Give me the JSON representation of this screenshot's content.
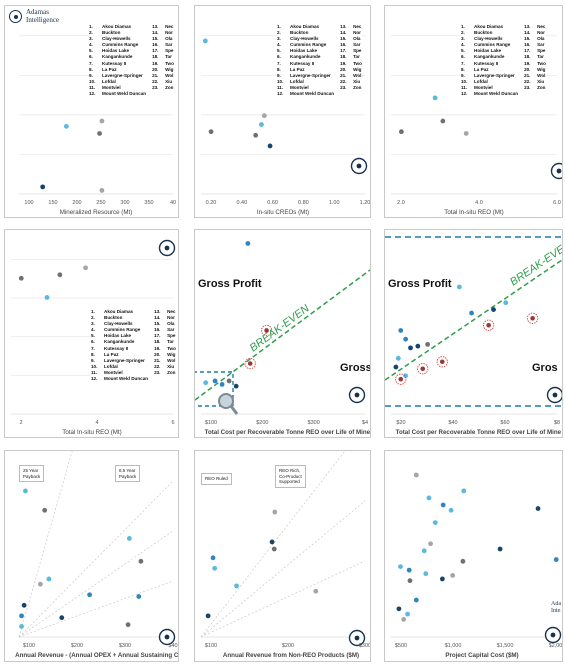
{
  "legend": {
    "col1": [
      {
        "n": "1.",
        "name": "Akou Diamas"
      },
      {
        "n": "2.",
        "name": "Buckton"
      },
      {
        "n": "3.",
        "name": "Clay-Howells"
      },
      {
        "n": "4.",
        "name": "Cummins Range"
      },
      {
        "n": "5.",
        "name": "Hoidas Lake"
      },
      {
        "n": "6.",
        "name": "Kangankunde"
      },
      {
        "n": "7.",
        "name": "Kutessay II"
      },
      {
        "n": "8.",
        "name": "La Paz"
      },
      {
        "n": "9.",
        "name": "Lavergne-Springer"
      },
      {
        "n": "10.",
        "name": "Lofdal"
      },
      {
        "n": "11.",
        "name": "Montviel"
      },
      {
        "n": "12.",
        "name": "Mount Weld Duncan"
      }
    ],
    "col2": [
      {
        "n": "13.",
        "name": "Nec"
      },
      {
        "n": "14.",
        "name": "Nor"
      },
      {
        "n": "15.",
        "name": "Ola"
      },
      {
        "n": "16.",
        "name": "Sar"
      },
      {
        "n": "17.",
        "name": "Spe"
      },
      {
        "n": "18.",
        "name": "Tar"
      },
      {
        "n": "19.",
        "name": "Two"
      },
      {
        "n": "20.",
        "name": "Wig"
      },
      {
        "n": "21.",
        "name": "Wol"
      },
      {
        "n": "22.",
        "name": "Xiu"
      },
      {
        "n": "23.",
        "name": "Zon"
      }
    ]
  },
  "logo": {
    "line1": "Adamas",
    "line2": "Intelligence"
  },
  "colors": {
    "light": "#5bb8de",
    "mid": "#2f86bd",
    "dark": "#16456e",
    "grey": "#707070",
    "lightgrey": "#a5a5a5",
    "green": "#2e9e4b",
    "red": "#d64545",
    "frame": "#c9c9c9"
  },
  "notes": {
    "p7_a": [
      "25 Year",
      "Payback"
    ],
    "p7_b": [
      "8.5 Year",
      "Payback"
    ],
    "p8_a": [
      "REO Ruled"
    ],
    "p8_b": [
      "REO Rich,",
      "Co-Product",
      "Supported"
    ]
  },
  "chart_data": [
    {
      "type": "scatter",
      "xlabel": "Mineralized Resource (Mt)",
      "xticks": [
        "100",
        "150",
        "200",
        "250",
        "300",
        "350",
        "40"
      ],
      "xlim": [
        75,
        400
      ],
      "ylim": [
        0,
        10
      ],
      "grid": true,
      "points": [
        {
          "x": 125,
          "y": 0.4,
          "c": "dark"
        },
        {
          "x": 175,
          "y": 3.8,
          "c": "light"
        },
        {
          "x": 245,
          "y": 3.4,
          "c": "grey"
        },
        {
          "x": 250,
          "y": 4.1,
          "c": "lightgrey"
        },
        {
          "x": 250,
          "y": 0.2,
          "c": "lightgrey"
        }
      ]
    },
    {
      "type": "scatter",
      "xlabel": "In-situ CREOs (Mt)",
      "xticks": [
        "0.20",
        "0.40",
        "0.60",
        "0.80",
        "1.00",
        "1.20"
      ],
      "xlim": [
        0.18,
        1.32
      ],
      "ylim": [
        0,
        10
      ],
      "grid": true,
      "points": [
        {
          "x": 0.21,
          "y": 8.6,
          "c": "light"
        },
        {
          "x": 0.25,
          "y": 3.5,
          "c": "grey"
        },
        {
          "x": 0.56,
          "y": 3.3,
          "c": "grey"
        },
        {
          "x": 0.6,
          "y": 3.9,
          "c": "light"
        },
        {
          "x": 0.62,
          "y": 4.4,
          "c": "lightgrey"
        },
        {
          "x": 0.66,
          "y": 2.7,
          "c": "dark"
        }
      ]
    },
    {
      "type": "scatter",
      "xlabel": "Total In-situ REO (Mt)",
      "xticks": [
        "2.0",
        "4.0",
        "6.0"
      ],
      "xlim": [
        0.6,
        7.0
      ],
      "ylim": [
        0,
        10
      ],
      "grid": true,
      "points": [
        {
          "x": 1.0,
          "y": 3.5,
          "c": "grey"
        },
        {
          "x": 2.3,
          "y": 5.4,
          "c": "light"
        },
        {
          "x": 2.6,
          "y": 4.1,
          "c": "grey"
        },
        {
          "x": 3.5,
          "y": 3.4,
          "c": "lightgrey"
        }
      ]
    },
    {
      "type": "scatter",
      "xlabel": "Total In-situ REO (Mt)",
      "xticks": [
        "2",
        "4",
        "6"
      ],
      "xlim": [
        0.5,
        6.8
      ],
      "ylim": [
        0,
        10
      ],
      "grid": true,
      "points": [
        {
          "x": 0.9,
          "y": 7.8,
          "c": "grey"
        },
        {
          "x": 2.4,
          "y": 8.0,
          "c": "grey"
        },
        {
          "x": 3.4,
          "y": 8.4,
          "c": "lightgrey"
        },
        {
          "x": 1.9,
          "y": 6.7,
          "c": "light"
        }
      ]
    },
    {
      "type": "scatter",
      "xlabel": "Total Cost per Recoverable Tonne REO over Life of Mine ($",
      "xticks": [
        "$100",
        "$200",
        "$300",
        "$4"
      ],
      "xlim": [
        50,
        400
      ],
      "ylim": [
        0,
        10
      ],
      "grid": false,
      "texts": {
        "upper": "Gross Profit",
        "lower": "Gross l",
        "line": "BREAK-EVEN"
      },
      "points": [
        {
          "x": 150,
          "y": 9.8,
          "c": "mid"
        },
        {
          "x": 190,
          "y": 4.8,
          "c": "red"
        },
        {
          "x": 155,
          "y": 2.9,
          "c": "red"
        },
        {
          "x": 60,
          "y": 1.8,
          "c": "light"
        },
        {
          "x": 80,
          "y": 1.9,
          "c": "mid"
        },
        {
          "x": 95,
          "y": 1.7,
          "c": "mid"
        },
        {
          "x": 110,
          "y": 1.9,
          "c": "grey"
        },
        {
          "x": 125,
          "y": 1.6,
          "c": "dark"
        }
      ]
    },
    {
      "type": "scatter",
      "xlabel": "Total Cost per Recoverable Tonne REO over Life of Mine ($",
      "xticks": [
        "$20",
        "$40",
        "$60",
        "$8"
      ],
      "xlim": [
        12,
        80
      ],
      "ylim": [
        0,
        10
      ],
      "grid": false,
      "texts": {
        "upper": "Gross Profit",
        "lower": "Gros",
        "line": "BREAK-EVEN"
      },
      "points": [
        {
          "x": 40,
          "y": 7.3,
          "c": "light"
        },
        {
          "x": 45,
          "y": 5.8,
          "c": "mid"
        },
        {
          "x": 54,
          "y": 6.0,
          "c": "dark"
        },
        {
          "x": 59,
          "y": 6.4,
          "c": "light"
        },
        {
          "x": 16,
          "y": 4.8,
          "c": "mid"
        },
        {
          "x": 18,
          "y": 4.3,
          "c": "mid"
        },
        {
          "x": 20,
          "y": 3.8,
          "c": "dark"
        },
        {
          "x": 23,
          "y": 3.9,
          "c": "dark"
        },
        {
          "x": 27,
          "y": 4.0,
          "c": "grey"
        },
        {
          "x": 15,
          "y": 3.2,
          "c": "light"
        },
        {
          "x": 14,
          "y": 2.7,
          "c": "dark"
        },
        {
          "x": 18,
          "y": 2.2,
          "c": "light"
        },
        {
          "x": 33,
          "y": 3.0,
          "c": "red"
        },
        {
          "x": 25,
          "y": 2.6,
          "c": "red"
        },
        {
          "x": 16,
          "y": 2.0,
          "c": "red"
        },
        {
          "x": 52,
          "y": 5.1,
          "c": "red"
        },
        {
          "x": 70,
          "y": 5.5,
          "c": "red"
        }
      ]
    },
    {
      "type": "scatter",
      "xlabel": "Annual Revenue - (Annual OPEX + Annual Sustaining Capita",
      "xticks": [
        "$100",
        "$200",
        "$300",
        "$40"
      ],
      "xlim": [
        50,
        410
      ],
      "ylim": [
        0,
        10
      ],
      "grid": false,
      "points": [
        {
          "x": 65,
          "y": 8.3,
          "c": "light"
        },
        {
          "x": 110,
          "y": 7.2,
          "c": "grey"
        },
        {
          "x": 308,
          "y": 5.6,
          "c": "light"
        },
        {
          "x": 335,
          "y": 4.3,
          "c": "grey"
        },
        {
          "x": 120,
          "y": 3.3,
          "c": "light"
        },
        {
          "x": 100,
          "y": 3.0,
          "c": "lightgrey"
        },
        {
          "x": 215,
          "y": 2.4,
          "c": "mid"
        },
        {
          "x": 330,
          "y": 2.3,
          "c": "mid"
        },
        {
          "x": 62,
          "y": 1.8,
          "c": "dark"
        },
        {
          "x": 56,
          "y": 1.2,
          "c": "mid"
        },
        {
          "x": 150,
          "y": 1.1,
          "c": "dark"
        },
        {
          "x": 305,
          "y": 0.7,
          "c": "grey"
        },
        {
          "x": 56,
          "y": 0.6,
          "c": "light"
        }
      ]
    },
    {
      "type": "scatter",
      "xlabel": "Annual Revenue from Non-REO Products ($M)",
      "xticks": [
        "$100",
        "$200",
        "$300"
      ],
      "xlim": [
        30,
        330
      ],
      "ylim": [
        0,
        10
      ],
      "grid": false,
      "points": [
        {
          "x": 165,
          "y": 7.1,
          "c": "lightgrey"
        },
        {
          "x": 160,
          "y": 5.4,
          "c": "dark"
        },
        {
          "x": 164,
          "y": 5.0,
          "c": "grey"
        },
        {
          "x": 52,
          "y": 4.5,
          "c": "mid"
        },
        {
          "x": 55,
          "y": 3.9,
          "c": "light"
        },
        {
          "x": 95,
          "y": 2.9,
          "c": "light"
        },
        {
          "x": 240,
          "y": 2.6,
          "c": "lightgrey"
        },
        {
          "x": 43,
          "y": 1.2,
          "c": "dark"
        }
      ]
    },
    {
      "type": "scatter",
      "xlabel": "Project Capital Cost ($M)",
      "xticks": [
        "$500",
        "$1,000",
        "$1,500",
        "$2,000"
      ],
      "xlim": [
        100,
        2200
      ],
      "ylim": [
        0,
        10
      ],
      "grid": false,
      "points": [
        {
          "x": 420,
          "y": 9.2,
          "c": "lightgrey"
        },
        {
          "x": 1020,
          "y": 8.3,
          "c": "light"
        },
        {
          "x": 580,
          "y": 7.9,
          "c": "light"
        },
        {
          "x": 760,
          "y": 7.5,
          "c": "mid"
        },
        {
          "x": 860,
          "y": 7.2,
          "c": "light"
        },
        {
          "x": 1960,
          "y": 7.3,
          "c": "dark"
        },
        {
          "x": 660,
          "y": 6.5,
          "c": "light"
        },
        {
          "x": 600,
          "y": 5.3,
          "c": "lightgrey"
        },
        {
          "x": 520,
          "y": 4.9,
          "c": "light"
        },
        {
          "x": 1480,
          "y": 5.0,
          "c": "dark"
        },
        {
          "x": 2190,
          "y": 4.4,
          "c": "mid"
        },
        {
          "x": 1010,
          "y": 4.3,
          "c": "grey"
        },
        {
          "x": 220,
          "y": 4.0,
          "c": "light"
        },
        {
          "x": 330,
          "y": 3.8,
          "c": "mid"
        },
        {
          "x": 540,
          "y": 3.6,
          "c": "light"
        },
        {
          "x": 750,
          "y": 3.3,
          "c": "dark"
        },
        {
          "x": 880,
          "y": 3.5,
          "c": "lightgrey"
        },
        {
          "x": 340,
          "y": 3.2,
          "c": "grey"
        },
        {
          "x": 420,
          "y": 2.1,
          "c": "mid"
        },
        {
          "x": 200,
          "y": 1.6,
          "c": "dark"
        },
        {
          "x": 310,
          "y": 1.3,
          "c": "light"
        },
        {
          "x": 260,
          "y": 1.0,
          "c": "lightgrey"
        }
      ]
    }
  ]
}
